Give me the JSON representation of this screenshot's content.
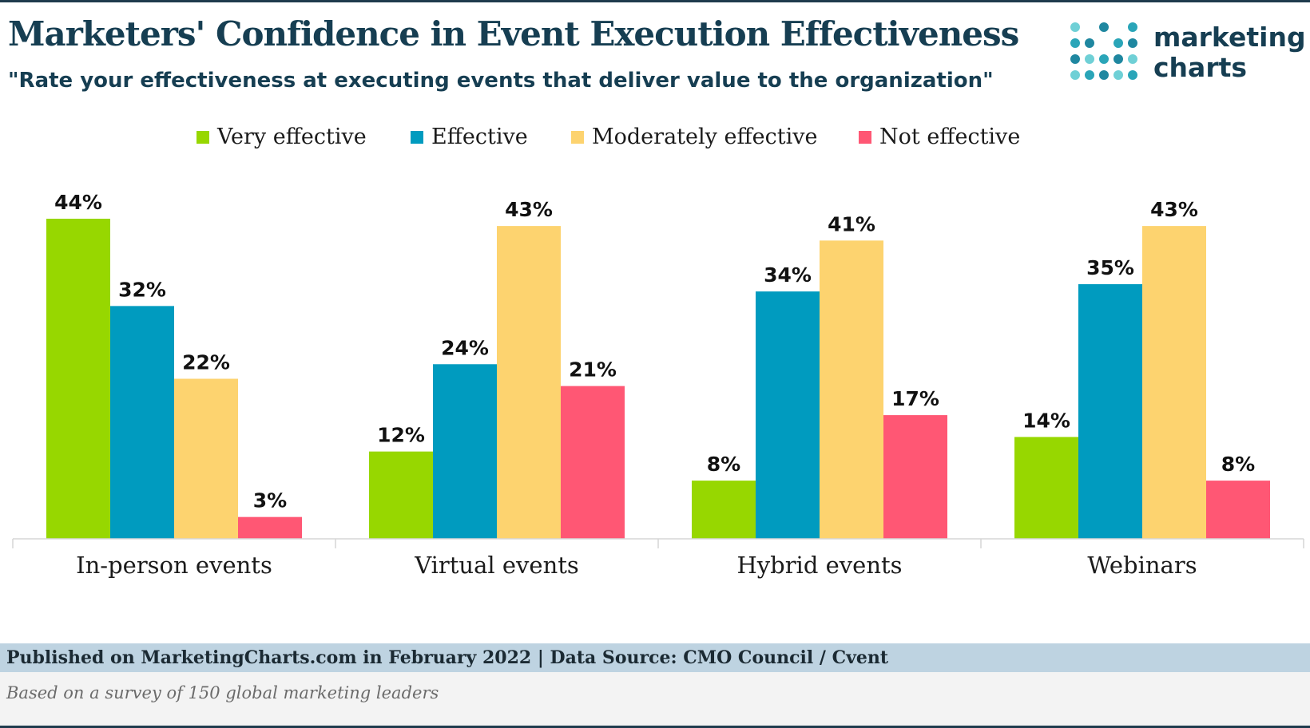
{
  "header": {
    "title": "Marketers' Confidence in Event Execution Effectiveness",
    "subtitle": "\"Rate your effectiveness at executing events that deliver value to the organization\""
  },
  "logo": {
    "line1": "marketing",
    "line2": "charts",
    "colors": [
      "#6fd0d6",
      "#2aa5b8",
      "#1f87a0"
    ]
  },
  "footer": {
    "source": "Published on MarketingCharts.com in February 2022 | Data Source: CMO Council / Cvent",
    "note": "Based on a survey of 150 global marketing leaders"
  },
  "chart_data": {
    "type": "bar",
    "categories": [
      "In-person events",
      "Virtual events",
      "Hybrid events",
      "Webinars"
    ],
    "series": [
      {
        "name": "Very effective",
        "color": "#97d700",
        "values": [
          44,
          12,
          8,
          14
        ]
      },
      {
        "name": "Effective",
        "color": "#009bbf",
        "values": [
          32,
          24,
          34,
          35
        ]
      },
      {
        "name": "Moderately effective",
        "color": "#fdd36f",
        "values": [
          22,
          43,
          41,
          43
        ]
      },
      {
        "name": "Not effective",
        "color": "#ff5774",
        "values": [
          3,
          21,
          17,
          8
        ]
      }
    ],
    "value_suffix": "%",
    "ylim": [
      0,
      44
    ],
    "legend": "top-center",
    "grid": false
  }
}
